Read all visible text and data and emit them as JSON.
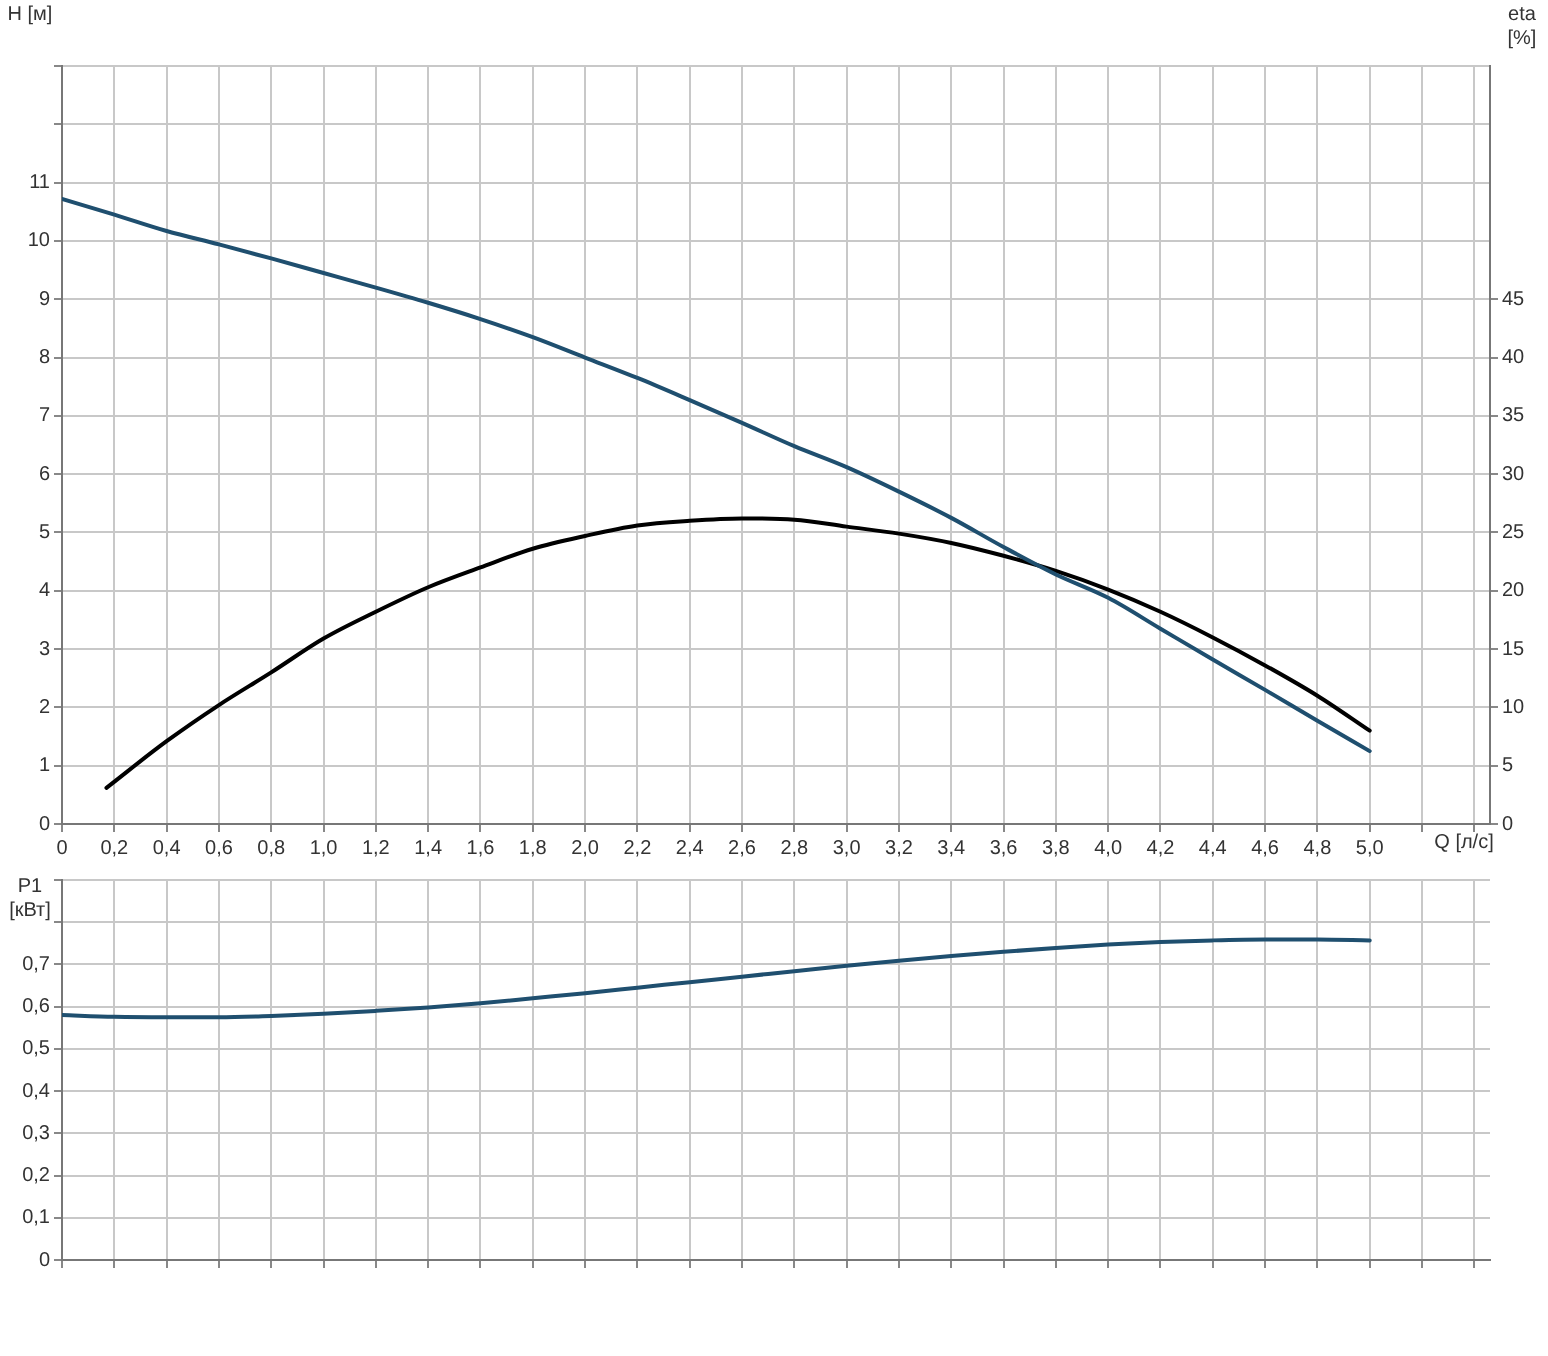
{
  "chart_data": [
    {
      "type": "line",
      "xlabel": "Q [л/с]",
      "ylabel": "H [м]",
      "y2label": "eta [%]",
      "grid": true,
      "marker": "none",
      "line_style": "solid",
      "xlim": [
        0,
        5.46
      ],
      "xticks": [
        0,
        {
          "value": 0.2,
          "label": "0,2"
        },
        {
          "value": 0.4,
          "label": "0,4"
        },
        {
          "value": 0.6,
          "label": "0,6"
        },
        {
          "value": 0.8,
          "label": "0,8"
        },
        {
          "value": 1.0,
          "label": "1,0"
        },
        {
          "value": 1.2,
          "label": "1,2"
        },
        {
          "value": 1.4,
          "label": "1,4"
        },
        {
          "value": 1.6,
          "label": "1,6"
        },
        {
          "value": 1.8,
          "label": "1,8"
        },
        {
          "value": 2.0,
          "label": "2,0"
        },
        {
          "value": 2.2,
          "label": "2,2"
        },
        {
          "value": 2.4,
          "label": "2,4"
        },
        {
          "value": 2.6,
          "label": "2,6"
        },
        {
          "value": 2.8,
          "label": "2,8"
        },
        {
          "value": 3.0,
          "label": "3,0"
        },
        {
          "value": 3.2,
          "label": "3,2"
        },
        {
          "value": 3.4,
          "label": "3,4"
        },
        {
          "value": 3.6,
          "label": "3,6"
        },
        {
          "value": 3.8,
          "label": "3,8"
        },
        {
          "value": 4.0,
          "label": "4,0"
        },
        {
          "value": 4.2,
          "label": "4,2"
        },
        {
          "value": 4.4,
          "label": "4,4"
        },
        {
          "value": 4.6,
          "label": "4,6"
        },
        {
          "value": 4.8,
          "label": "4,8"
        },
        {
          "value": 5.0,
          "label": "5,0"
        },
        {
          "value": 5.2,
          "label": null
        },
        {
          "value": 5.4,
          "label": null
        }
      ],
      "ylim": [
        0,
        13
      ],
      "yticks": [
        0,
        1,
        2,
        3,
        4,
        5,
        6,
        7,
        8,
        9,
        10,
        11,
        {
          "value": 12,
          "label": null
        },
        {
          "value": 13,
          "label": null
        }
      ],
      "y2lim": [
        0,
        65
      ],
      "y2ticks": [
        0,
        5,
        10,
        15,
        20,
        25,
        30,
        35,
        40,
        45
      ],
      "series": [
        {
          "color": "#1f4f6f",
          "x": [
            0,
            0.2,
            0.4,
            0.6,
            0.8,
            1.0,
            1.2,
            1.4,
            1.6,
            1.8,
            2.0,
            2.2,
            2.4,
            2.6,
            2.8,
            3.0,
            3.2,
            3.4,
            3.6,
            3.8,
            4.0,
            4.2,
            4.4,
            4.6,
            4.8,
            5.0
          ],
          "values": [
            10.72,
            10.45,
            10.17,
            9.94,
            9.7,
            9.45,
            9.2,
            8.94,
            8.66,
            8.35,
            8.0,
            7.65,
            7.27,
            6.88,
            6.48,
            6.12,
            5.7,
            5.25,
            4.75,
            4.28,
            3.88,
            3.35,
            2.82,
            2.3,
            1.77,
            1.25
          ]
        },
        {
          "color": "#000000",
          "axis": "y2",
          "x": [
            0.17,
            0.4,
            0.6,
            0.8,
            1.0,
            1.2,
            1.4,
            1.6,
            1.8,
            2.0,
            2.2,
            2.4,
            2.6,
            2.8,
            3.0,
            3.2,
            3.4,
            3.6,
            3.8,
            4.0,
            4.2,
            4.4,
            4.6,
            4.8,
            5.0
          ],
          "values": [
            3.1,
            7.1,
            10.2,
            13,
            15.9,
            18.2,
            20.3,
            22,
            23.6,
            24.7,
            25.6,
            26,
            26.2,
            26.1,
            25.5,
            24.9,
            24.1,
            23,
            21.7,
            20.1,
            18.2,
            16,
            13.6,
            11,
            8
          ]
        }
      ]
    },
    {
      "type": "line",
      "ylabel": "P1 [кВт]",
      "grid": true,
      "marker": "none",
      "line_style": "solid",
      "tick_labels": "y",
      "xlim": [
        0,
        5.46
      ],
      "xticks": [
        0,
        0.2,
        0.4,
        0.6,
        0.8,
        1.0,
        1.2,
        1.4,
        1.6,
        1.8,
        2.0,
        2.2,
        2.4,
        2.6,
        2.8,
        3.0,
        3.2,
        3.4,
        3.6,
        3.8,
        4.0,
        4.2,
        4.4,
        4.6,
        4.8,
        5.0,
        5.2,
        5.4
      ],
      "ylim": [
        0,
        0.9
      ],
      "yticks": [
        0,
        {
          "value": 0.1,
          "label": "0,1"
        },
        {
          "value": 0.2,
          "label": "0,2"
        },
        {
          "value": 0.3,
          "label": "0,3"
        },
        {
          "value": 0.4,
          "label": "0,4"
        },
        {
          "value": 0.5,
          "label": "0,5"
        },
        {
          "value": 0.6,
          "label": "0,6"
        },
        {
          "value": 0.7,
          "label": "0,7"
        },
        {
          "value": 0.8,
          "label": null
        },
        {
          "value": 0.9,
          "label": null
        }
      ],
      "series": [
        {
          "color": "#1f4f6f",
          "x": [
            0,
            0.2,
            0.4,
            0.6,
            0.8,
            1.0,
            1.2,
            1.4,
            1.6,
            1.8,
            2.0,
            2.2,
            2.4,
            2.6,
            2.8,
            3.0,
            3.2,
            3.4,
            3.6,
            3.8,
            4.0,
            4.2,
            4.4,
            4.6,
            4.8,
            5.0
          ],
          "values": [
            0.58,
            0.576,
            0.575,
            0.575,
            0.578,
            0.583,
            0.59,
            0.598,
            0.608,
            0.62,
            0.632,
            0.645,
            0.658,
            0.671,
            0.684,
            0.697,
            0.709,
            0.72,
            0.73,
            0.739,
            0.747,
            0.753,
            0.757,
            0.759,
            0.759,
            0.757
          ]
        }
      ]
    }
  ]
}
